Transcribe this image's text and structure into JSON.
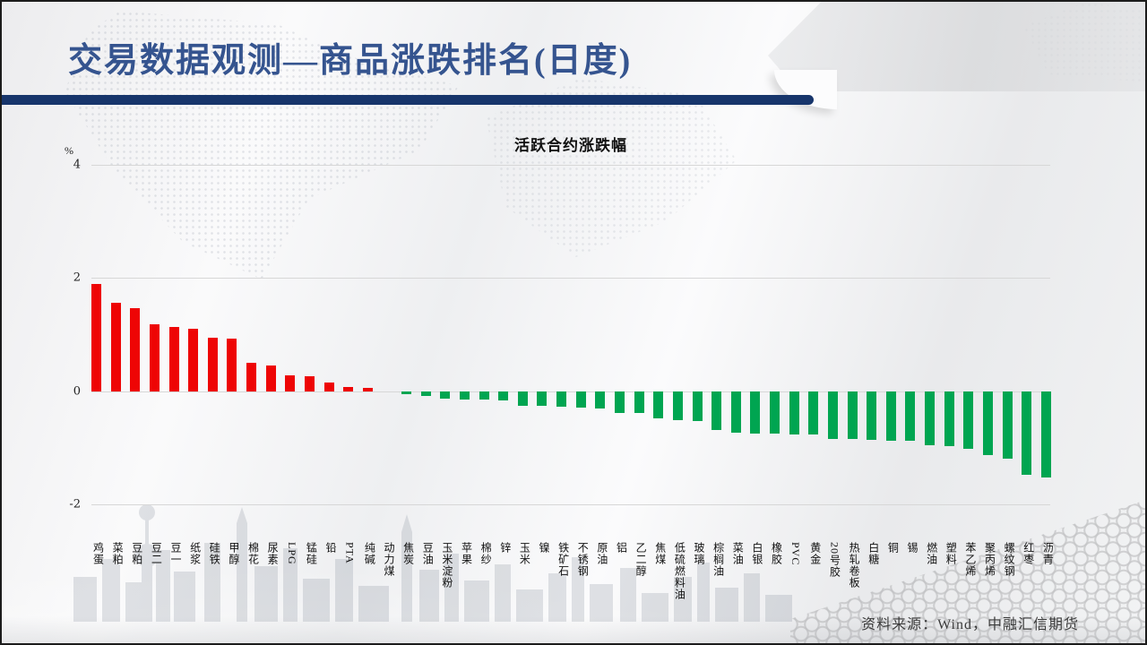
{
  "slide": {
    "title": "交易数据观测—商品涨跌排名(日度)",
    "source": "资料来源：Wind，中融汇信期货",
    "accent_colors": {
      "title_text": "#35548F",
      "underline_bar": "#17356B"
    }
  },
  "chart_data": {
    "type": "bar",
    "title": "活跃合约涨跌幅",
    "ylabel": "%",
    "xlabel": "",
    "ylim": [
      -2,
      4
    ],
    "yticks": [
      4,
      2,
      0,
      -2
    ],
    "grid": true,
    "legend_position": "none",
    "positive_color": "#EE0505",
    "negative_color": "#00A551",
    "categories": [
      "鸡蛋",
      "菜粕",
      "豆粕",
      "豆二",
      "豆一",
      "纸浆",
      "硅铁",
      "甲醇",
      "棉花",
      "尿素",
      "LPG",
      "锰硅",
      "铅",
      "PTA",
      "纯碱",
      "动力煤",
      "焦炭",
      "豆油",
      "玉米淀粉",
      "苹果",
      "棉纱",
      "锌",
      "玉米",
      "镍",
      "铁矿石",
      "不锈钢",
      "原油",
      "铝",
      "乙二醇",
      "焦煤",
      "低硫燃料油",
      "玻璃",
      "棕榈油",
      "菜油",
      "白银",
      "橡胶",
      "PVC",
      "黄金",
      "20号胶",
      "热轧卷板",
      "白糖",
      "铜",
      "锡",
      "燃油",
      "塑料",
      "苯乙烯",
      "聚丙烯",
      "螺纹钢",
      "红枣",
      "沥青"
    ],
    "values": [
      1.9,
      1.57,
      1.47,
      1.18,
      1.13,
      1.11,
      0.95,
      0.93,
      0.51,
      0.46,
      0.28,
      0.26,
      0.16,
      0.08,
      0.06,
      0.0,
      -0.05,
      -0.09,
      -0.13,
      -0.14,
      -0.15,
      -0.16,
      -0.25,
      -0.26,
      -0.27,
      -0.29,
      -0.3,
      -0.38,
      -0.39,
      -0.47,
      -0.51,
      -0.53,
      -0.68,
      -0.73,
      -0.74,
      -0.74,
      -0.76,
      -0.76,
      -0.84,
      -0.84,
      -0.85,
      -0.88,
      -0.88,
      -0.95,
      -0.97,
      -1.01,
      -1.12,
      -1.19,
      -1.48,
      -1.53
    ]
  }
}
